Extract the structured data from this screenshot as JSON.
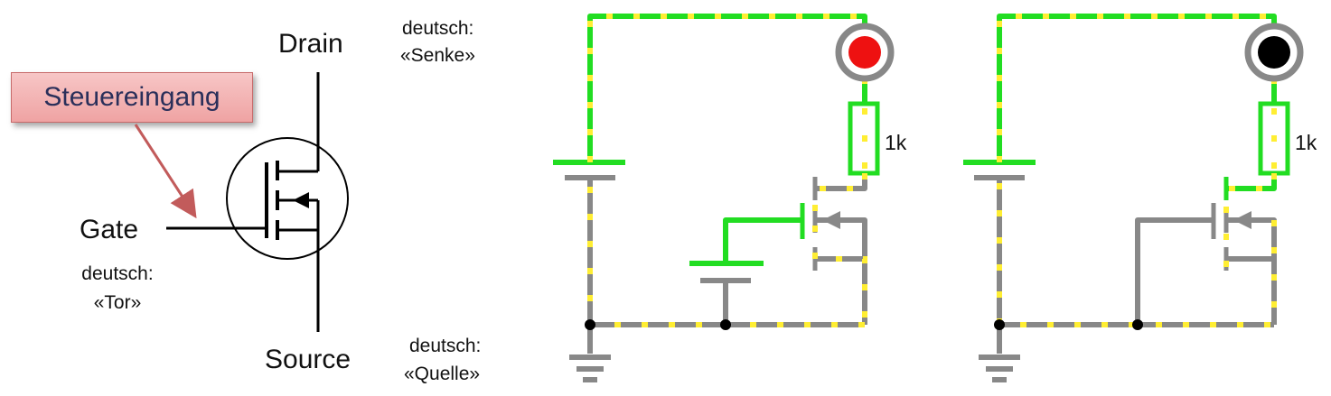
{
  "symbol": {
    "drain": "Drain",
    "source": "Source",
    "gate": "Gate",
    "callout": "Steuereingang",
    "gate_de_1": "deutsch:",
    "gate_de_2": "«Tor»"
  },
  "notes": {
    "drain_de_1": "deutsch:",
    "drain_de_2": "«Senke»",
    "source_de_1": "deutsch:",
    "source_de_2": "«Quelle»"
  },
  "circuits": [
    {
      "resistor_label": "1k",
      "led_state": "on",
      "led_color": "#ee1111"
    },
    {
      "resistor_label": "1k",
      "led_state": "off",
      "led_color": "#000000"
    }
  ],
  "colors": {
    "energized": "#22dd22",
    "idle": "#888888",
    "current_dots": "#ffee33",
    "callout_arrow": "#c25b5b"
  }
}
